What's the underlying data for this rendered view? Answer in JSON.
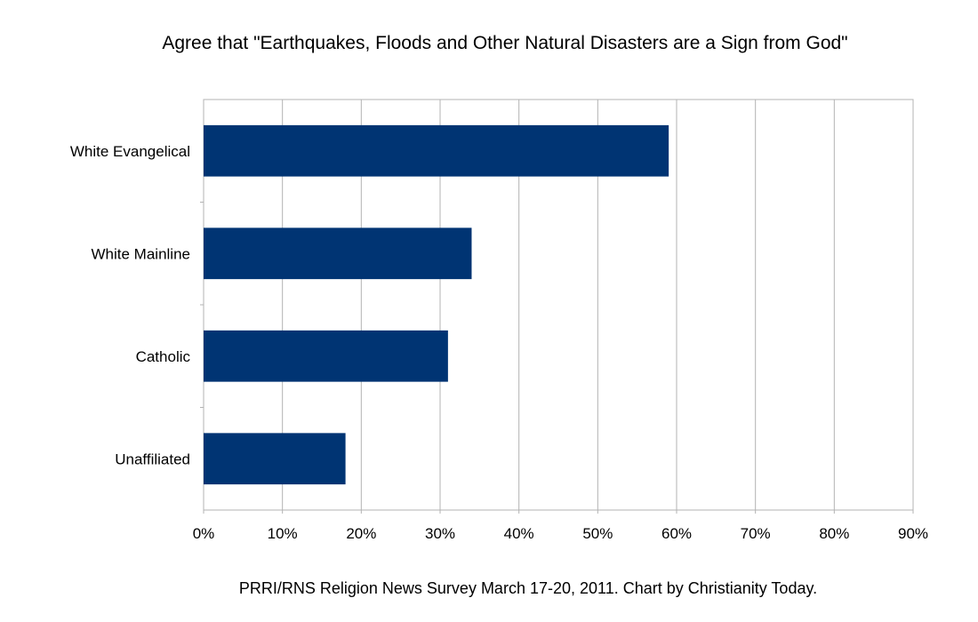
{
  "chart_data": {
    "type": "bar",
    "orientation": "horizontal",
    "title": "Agree that \"Earthquakes, Floods and Other Natural Disasters are a Sign from God\"",
    "footer": "PRRI/RNS Religion News Survey March 17-20, 2011.  Chart by Christianity Today.",
    "categories": [
      "White Evangelical",
      "White Mainline",
      "Catholic",
      "Unaffiliated"
    ],
    "values": [
      59,
      34,
      31,
      18
    ],
    "xlim": [
      0,
      90
    ],
    "x_ticks": [
      "0%",
      "10%",
      "20%",
      "30%",
      "40%",
      "50%",
      "60%",
      "70%",
      "80%",
      "90%"
    ],
    "bar_color": "#003473",
    "grid": true,
    "legend": "none"
  }
}
